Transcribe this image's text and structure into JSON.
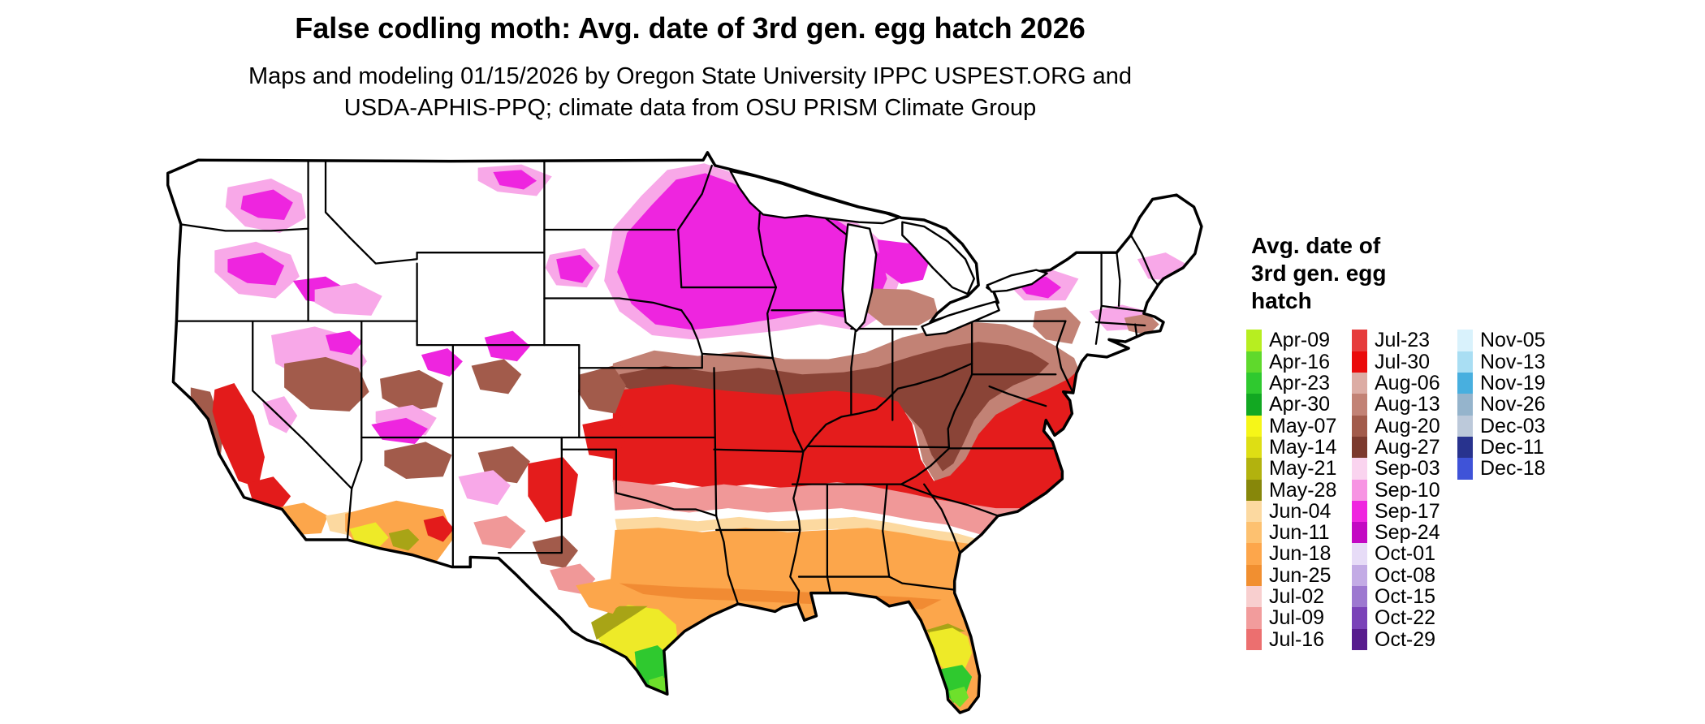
{
  "title": "False codling moth: Avg. date of 3rd gen. egg hatch 2026",
  "subtitle_line1": "Maps and modeling 01/15/2026 by Oregon State University IPPC USPEST.ORG and",
  "subtitle_line2": "USDA-APHIS-PPQ; climate data from OSU PRISM Climate Group",
  "map": {
    "region_shown": "Contiguous United States",
    "type": "raster choropleth of average 3rd generation egg hatch date"
  },
  "legend": {
    "title_lines": [
      "Avg. date of",
      "3rd gen. egg",
      "hatch"
    ],
    "columns": [
      {
        "entries": [
          {
            "label": "Apr-09",
            "color": "#b7ee20"
          },
          {
            "label": "Apr-16",
            "color": "#5fd92c"
          },
          {
            "label": "Apr-23",
            "color": "#2fc92f"
          },
          {
            "label": "Apr-30",
            "color": "#12a822"
          },
          {
            "label": "May-07",
            "color": "#f6f618"
          },
          {
            "label": "May-14",
            "color": "#dede14"
          },
          {
            "label": "May-21",
            "color": "#b2b20e"
          },
          {
            "label": "May-28",
            "color": "#87870a"
          },
          {
            "label": "Jun-04",
            "color": "#fcd9a0"
          },
          {
            "label": "Jun-11",
            "color": "#fdc170"
          },
          {
            "label": "Jun-18",
            "color": "#fda64b"
          },
          {
            "label": "Jun-25",
            "color": "#f18f30"
          },
          {
            "label": "Jul-02",
            "color": "#f8cfcf"
          },
          {
            "label": "Jul-09",
            "color": "#f29c9c"
          },
          {
            "label": "Jul-16",
            "color": "#ec6f6f"
          }
        ]
      },
      {
        "entries": [
          {
            "label": "Jul-23",
            "color": "#e63c3c"
          },
          {
            "label": "Jul-30",
            "color": "#ea0b0b"
          },
          {
            "label": "Aug-06",
            "color": "#dcaca4"
          },
          {
            "label": "Aug-13",
            "color": "#c28275"
          },
          {
            "label": "Aug-20",
            "color": "#a25b4b"
          },
          {
            "label": "Aug-27",
            "color": "#7c3a2e"
          },
          {
            "label": "Sep-03",
            "color": "#fad4ef"
          },
          {
            "label": "Sep-10",
            "color": "#f795e3"
          },
          {
            "label": "Sep-17",
            "color": "#ef25df"
          },
          {
            "label": "Sep-24",
            "color": "#c309c3"
          },
          {
            "label": "Oct-01",
            "color": "#e7dcf7"
          },
          {
            "label": "Oct-08",
            "color": "#c3abe5"
          },
          {
            "label": "Oct-15",
            "color": "#9d78d0"
          },
          {
            "label": "Oct-22",
            "color": "#7a42b8"
          },
          {
            "label": "Oct-29",
            "color": "#581c8e"
          }
        ]
      },
      {
        "entries": [
          {
            "label": "Nov-05",
            "color": "#d9f2fc"
          },
          {
            "label": "Nov-13",
            "color": "#a9def3"
          },
          {
            "label": "Nov-19",
            "color": "#48afdf"
          },
          {
            "label": "Nov-26",
            "color": "#95b4cc"
          },
          {
            "label": "Dec-03",
            "color": "#bcc9da"
          },
          {
            "label": "Dec-11",
            "color": "#28338e"
          },
          {
            "label": "Dec-18",
            "color": "#3f53d8"
          }
        ]
      }
    ]
  }
}
